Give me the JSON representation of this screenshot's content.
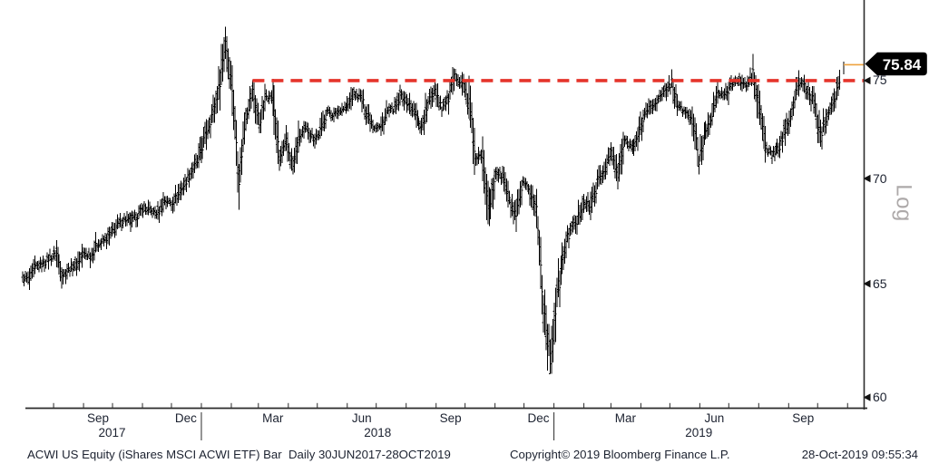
{
  "chart": {
    "last_price_label": "75.84",
    "scale_label": "Log",
    "footer_left": "ACWI US Equity (iShares MSCI ACWI ETF) Bar  Daily 30JUN2017-28OCT2019",
    "footer_copyright": "Copyright© 2019 Bloomberg Finance L.P.",
    "footer_timestamp": "28-Oct-2019 09:55:34",
    "colors": {
      "bar": "#000000",
      "reference_red": "#e5342b",
      "highlight_orange": "#eea23e",
      "tag_bg": "#000000",
      "tag_text": "#ffffff",
      "axis_line": "#2b2b2b",
      "axis_text": "#1c2230",
      "log_gray": "#ada9a9"
    }
  },
  "chart_data": {
    "type": "bar",
    "title": "ACWI US Equity (iShares MSCI ACWI ETF)",
    "period": "Daily 30JUN2017-28OCT2019",
    "y_scale": "log",
    "ylim": [
      60,
      78
    ],
    "y_ticks": [
      75,
      70,
      65,
      60
    ],
    "x_range": {
      "start": "2017-06-30",
      "end": "2019-10-28"
    },
    "reference_line": {
      "price": 75,
      "style": "dashed",
      "color": "#e5342b",
      "start_date": "2018-02-23"
    },
    "last": {
      "date": "2019-10-28",
      "price": 75.84
    },
    "x_tick_months": [
      {
        "label": "Sep",
        "mid": "2017-09-16"
      },
      {
        "label": "Dec",
        "mid": "2017-12-16"
      },
      {
        "label": "Mar",
        "mid": "2018-03-16"
      },
      {
        "label": "Jun",
        "mid": "2018-06-16"
      },
      {
        "label": "Sep",
        "mid": "2018-09-16"
      },
      {
        "label": "Dec",
        "mid": "2018-12-16"
      },
      {
        "label": "Mar",
        "mid": "2019-03-16"
      },
      {
        "label": "Jun",
        "mid": "2019-06-16"
      },
      {
        "label": "Sep",
        "mid": "2019-09-16"
      }
    ],
    "year_labels": [
      {
        "label": "2017",
        "span": [
          "2017-06-30",
          "2018-01-01"
        ]
      },
      {
        "label": "2018",
        "span": [
          "2018-01-01",
          "2019-01-01"
        ]
      },
      {
        "label": "2019",
        "span": [
          "2019-01-01",
          "2019-10-28"
        ]
      }
    ],
    "year_separators": [
      "2018-01-01",
      "2019-01-01"
    ],
    "weekly_closes": {
      "start": "2017-06-30",
      "interval_days": 7,
      "prices": [
        65.3,
        65.2,
        65.8,
        65.9,
        66.2,
        66.4,
        65.4,
        65.7,
        65.9,
        66.4,
        66.3,
        66.8,
        67.0,
        67.3,
        67.7,
        68.0,
        67.9,
        68.2,
        68.6,
        68.4,
        68.3,
        68.9,
        68.8,
        69.2,
        69.8,
        70.4,
        70.9,
        72.1,
        73.2,
        74.5,
        77.2,
        74.6,
        70.0,
        73.2,
        74.4,
        72.8,
        74.2,
        74.1,
        70.9,
        71.8,
        70.6,
        72.1,
        72.5,
        72.0,
        72.3,
        73.4,
        73.2,
        73.5,
        73.6,
        74.3,
        74.1,
        73.3,
        72.6,
        72.6,
        73.4,
        73.5,
        74.2,
        73.8,
        73.3,
        72.6,
        73.8,
        74.6,
        73.6,
        74.1,
        75.2,
        74.9,
        73.8,
        70.9,
        71.2,
        68.4,
        70.3,
        70.1,
        68.9,
        68.0,
        69.7,
        69.4,
        68.5,
        64.0,
        61.6,
        64.4,
        66.3,
        67.6,
        67.9,
        68.9,
        68.6,
        69.8,
        70.4,
        71.3,
        70.1,
        71.9,
        71.6,
        72.0,
        73.3,
        73.7,
        74.0,
        74.4,
        74.9,
        73.6,
        73.4,
        72.9,
        70.9,
        72.4,
        73.3,
        74.4,
        74.2,
        74.9,
        75.0,
        74.7,
        75.3,
        73.4,
        71.4,
        71.2,
        71.6,
        72.7,
        73.7,
        75.0,
        74.5,
        73.9,
        72.2,
        73.3,
        74.1,
        75.2
      ]
    }
  }
}
